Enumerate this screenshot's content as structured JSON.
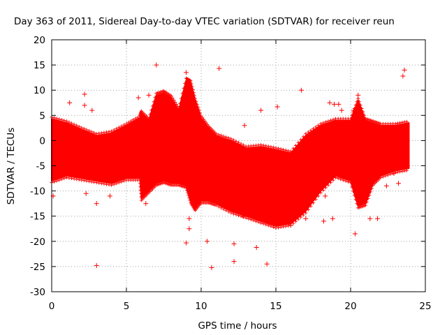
{
  "chart_data": {
    "type": "scatter",
    "title": "Day 363 of 2011, Sidereal Day-to-day VTEC variation (SDTVAR) for receiver reun",
    "xlabel": "GPS time / hours",
    "ylabel": "SDTVAR / TECUs",
    "xlim": [
      0,
      25
    ],
    "ylim": [
      -30,
      20
    ],
    "xticks": [
      0,
      5,
      10,
      15,
      20,
      25
    ],
    "yticks": [
      -30,
      -25,
      -20,
      -15,
      -10,
      -5,
      0,
      5,
      10,
      15,
      20
    ],
    "grid": true,
    "marker": "+",
    "color": "#ff0000",
    "envelope": {
      "x": [
        0.0,
        1.0,
        2.0,
        3.0,
        4.0,
        5.0,
        5.9,
        6.0,
        6.5,
        7.0,
        7.5,
        8.0,
        8.5,
        9.0,
        9.3,
        9.6,
        10.0,
        10.5,
        11.0,
        12.0,
        13.0,
        14.0,
        15.0,
        16.0,
        17.0,
        18.0,
        19.0,
        20.0,
        20.5,
        21.0,
        21.5,
        22.0,
        23.0,
        23.9
      ],
      "upper": [
        4.3,
        3.5,
        2.2,
        1.0,
        1.5,
        3.0,
        4.5,
        5.5,
        4.0,
        9.0,
        9.5,
        8.5,
        6.0,
        12.0,
        11.5,
        8.0,
        4.5,
        2.5,
        1.0,
        0.0,
        -1.5,
        -1.2,
        -1.8,
        -2.5,
        1.0,
        3.0,
        4.0,
        4.0,
        8.0,
        4.0,
        3.5,
        3.0,
        3.0,
        3.5
      ],
      "lower": [
        -8.0,
        -7.0,
        -7.5,
        -8.0,
        -8.5,
        -7.5,
        -7.5,
        -11.5,
        -10.0,
        -8.5,
        -8.0,
        -8.5,
        -8.5,
        -9.0,
        -12.0,
        -13.5,
        -12.0,
        -12.0,
        -12.5,
        -14.0,
        -15.0,
        -16.0,
        -17.0,
        -16.5,
        -14.0,
        -10.0,
        -7.0,
        -8.0,
        -13.0,
        -12.5,
        -8.5,
        -7.0,
        -6.0,
        -5.5
      ]
    },
    "outliers": [
      {
        "x": 1.2,
        "y": 7.5
      },
      {
        "x": 2.2,
        "y": 9.2
      },
      {
        "x": 2.2,
        "y": 7.0
      },
      {
        "x": 2.7,
        "y": 6.0
      },
      {
        "x": 3.0,
        "y": -24.8
      },
      {
        "x": 3.0,
        "y": -12.5
      },
      {
        "x": 2.3,
        "y": -10.5
      },
      {
        "x": 3.9,
        "y": -11.0
      },
      {
        "x": 0.1,
        "y": -11.0
      },
      {
        "x": 5.8,
        "y": 8.5
      },
      {
        "x": 6.5,
        "y": 9.0
      },
      {
        "x": 7.0,
        "y": 15.0
      },
      {
        "x": 9.0,
        "y": 13.5
      },
      {
        "x": 9.0,
        "y": -20.3
      },
      {
        "x": 9.2,
        "y": -15.5
      },
      {
        "x": 9.2,
        "y": -17.5
      },
      {
        "x": 10.4,
        "y": -20.0
      },
      {
        "x": 10.7,
        "y": -25.2
      },
      {
        "x": 11.2,
        "y": 14.3
      },
      {
        "x": 12.2,
        "y": -24.0
      },
      {
        "x": 12.2,
        "y": -20.5
      },
      {
        "x": 12.8,
        "y": -15.0
      },
      {
        "x": 12.9,
        "y": 3.0
      },
      {
        "x": 13.0,
        "y": -13.5
      },
      {
        "x": 13.7,
        "y": -21.2
      },
      {
        "x": 14.0,
        "y": 6.0
      },
      {
        "x": 14.4,
        "y": -24.5
      },
      {
        "x": 15.1,
        "y": 6.7
      },
      {
        "x": 16.7,
        "y": 10.0
      },
      {
        "x": 18.6,
        "y": 7.5
      },
      {
        "x": 18.9,
        "y": 7.2
      },
      {
        "x": 19.2,
        "y": 7.2
      },
      {
        "x": 19.4,
        "y": 6.0
      },
      {
        "x": 18.3,
        "y": -11.0
      },
      {
        "x": 18.8,
        "y": -15.5
      },
      {
        "x": 18.2,
        "y": -16.0
      },
      {
        "x": 20.3,
        "y": -18.5
      },
      {
        "x": 20.5,
        "y": 9.0
      },
      {
        "x": 20.2,
        "y": 6.0
      },
      {
        "x": 21.0,
        "y": 3.0
      },
      {
        "x": 20.3,
        "y": -10.0
      },
      {
        "x": 21.3,
        "y": -15.5
      },
      {
        "x": 21.8,
        "y": -15.5
      },
      {
        "x": 22.4,
        "y": -9.0
      },
      {
        "x": 23.6,
        "y": 14.0
      },
      {
        "x": 23.5,
        "y": 12.8
      },
      {
        "x": 23.2,
        "y": -8.5
      },
      {
        "x": 22.9,
        "y": -6.5
      },
      {
        "x": 16.0,
        "y": -16.8
      },
      {
        "x": 17.0,
        "y": -15.5
      },
      {
        "x": 5.5,
        "y": -7.0
      },
      {
        "x": 6.3,
        "y": -12.5
      }
    ]
  }
}
